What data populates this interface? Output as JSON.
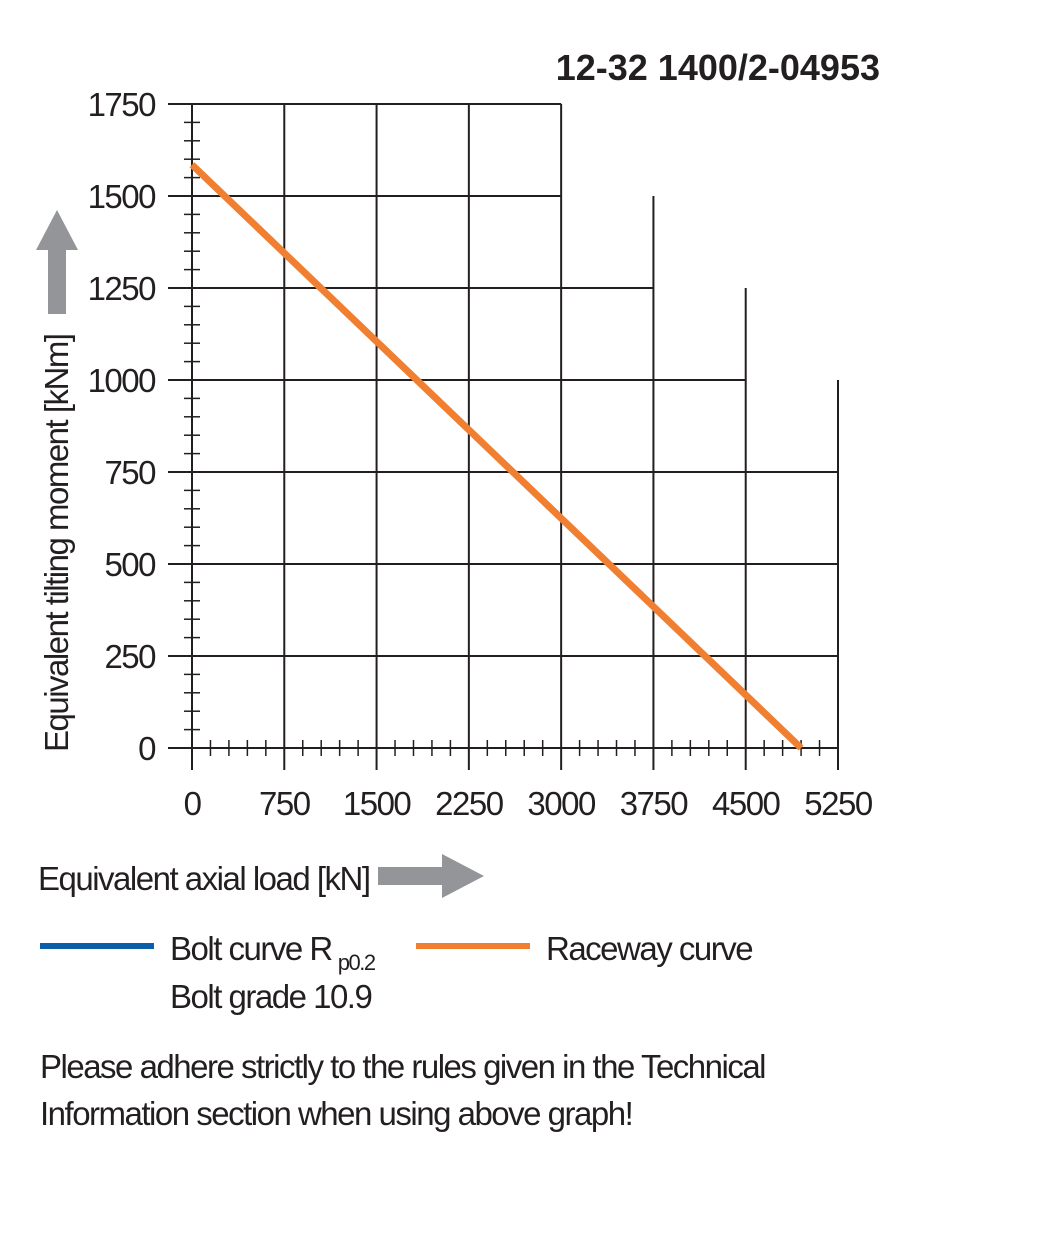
{
  "chart_data": {
    "type": "line",
    "title": "12-32 1400/2-04953",
    "xlabel": "Equivalent axial load [kN]",
    "ylabel": "Equivalent tilting moment [kNm]",
    "xlim": [
      0,
      5250
    ],
    "ylim": [
      0,
      1750
    ],
    "x_ticks": [
      "0",
      "750",
      "1500",
      "2250",
      "3000",
      "3750",
      "4500",
      "5250"
    ],
    "y_ticks": [
      "0",
      "250",
      "500",
      "750",
      "1000",
      "1250",
      "1500",
      "1750"
    ],
    "grid": "stepped",
    "series": [
      {
        "name": "Raceway curve",
        "color": "#f07f32",
        "points": [
          [
            0,
            1585
          ],
          [
            4950,
            0
          ]
        ]
      }
    ],
    "legend": [
      {
        "label": "Bolt curve  R",
        "sub": "p0.2",
        "line2": "Bolt grade 10.9",
        "color": "#0b5ea8"
      },
      {
        "label": "Raceway curve",
        "color": "#f07f32"
      }
    ],
    "note_lines": [
      "Please adhere strictly to the rules given in the Technical",
      "Information section when using above graph!"
    ],
    "arrow_color": "#939598"
  }
}
